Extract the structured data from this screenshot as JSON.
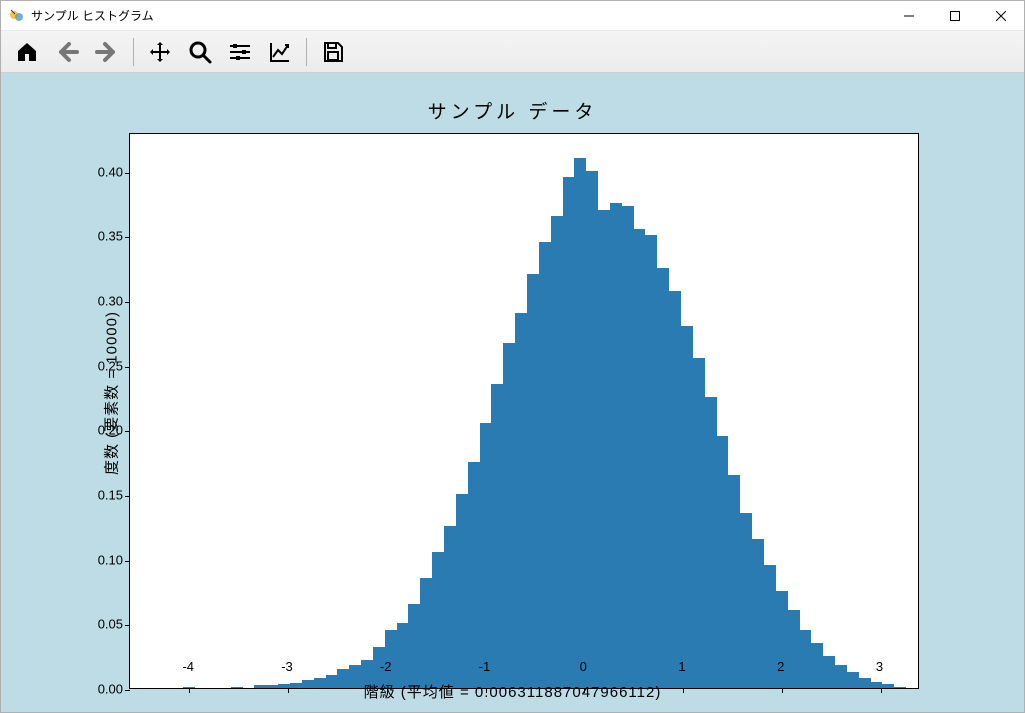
{
  "window": {
    "title": "サンプル ヒストグラム"
  },
  "chart": {
    "type": "histogram",
    "title": "サンプル データ",
    "title_fontsize": 19,
    "xlabel": "階級 (平均値 = 0.006311887047966112)",
    "ylabel": "度数 (要素数 = 10000)",
    "label_fontsize": 15,
    "tick_fontsize": 13,
    "background_color": "#bedce6",
    "plot_bg_color": "#ffffff",
    "axis_color": "#000000",
    "bar_color": "#2a7bb2",
    "xlim": [
      -4.6,
      3.4
    ],
    "ylim": [
      0.0,
      0.43
    ],
    "xticks": [
      -4,
      -3,
      -2,
      -1,
      0,
      1,
      2,
      3
    ],
    "yticks": [
      0.0,
      0.05,
      0.1,
      0.15,
      0.2,
      0.25,
      0.3,
      0.35,
      0.4
    ],
    "ytick_labels": [
      "0.00",
      "0.05",
      "0.10",
      "0.15",
      "0.20",
      "0.25",
      "0.30",
      "0.35",
      "0.40"
    ],
    "bin_width": 0.12,
    "bin_centers": [
      -4.0,
      -3.88,
      -3.76,
      -3.64,
      -3.52,
      -3.4,
      -3.28,
      -3.16,
      -3.04,
      -2.92,
      -2.8,
      -2.68,
      -2.56,
      -2.44,
      -2.32,
      -2.2,
      -2.08,
      -1.96,
      -1.84,
      -1.72,
      -1.6,
      -1.48,
      -1.36,
      -1.24,
      -1.12,
      -1.0,
      -0.88,
      -0.76,
      -0.64,
      -0.52,
      -0.4,
      -0.28,
      -0.16,
      -0.04,
      0.08,
      0.2,
      0.32,
      0.44,
      0.56,
      0.68,
      0.8,
      0.92,
      1.04,
      1.16,
      1.28,
      1.4,
      1.52,
      1.64,
      1.76,
      1.88,
      2.0,
      2.12,
      2.24,
      2.36,
      2.48,
      2.6,
      2.72,
      2.84,
      2.96,
      3.08,
      3.2
    ],
    "bin_heights": [
      0.001,
      0.0,
      0.0,
      0.0,
      0.001,
      0.0,
      0.002,
      0.002,
      0.003,
      0.004,
      0.006,
      0.008,
      0.01,
      0.015,
      0.018,
      0.022,
      0.032,
      0.045,
      0.05,
      0.065,
      0.085,
      0.105,
      0.125,
      0.15,
      0.175,
      0.205,
      0.235,
      0.267,
      0.29,
      0.32,
      0.345,
      0.365,
      0.395,
      0.41,
      0.4,
      0.37,
      0.375,
      0.373,
      0.355,
      0.35,
      0.325,
      0.307,
      0.28,
      0.255,
      0.225,
      0.195,
      0.165,
      0.135,
      0.115,
      0.095,
      0.075,
      0.06,
      0.045,
      0.035,
      0.025,
      0.018,
      0.012,
      0.008,
      0.005,
      0.003,
      0.001
    ]
  }
}
